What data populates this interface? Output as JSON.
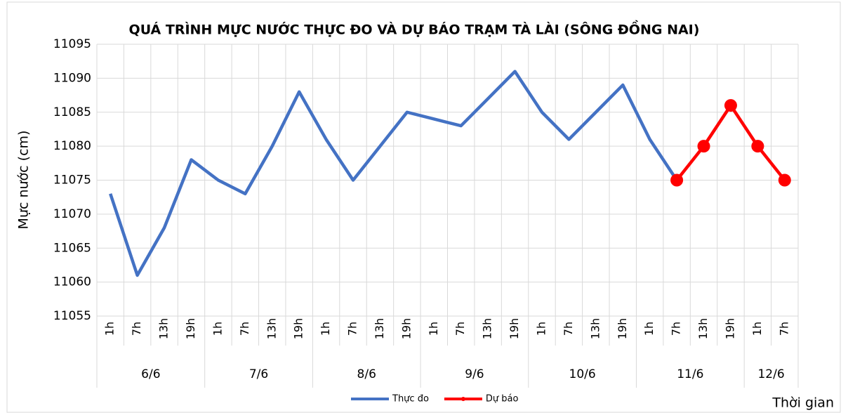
{
  "chart_data": {
    "type": "line",
    "title": "QUÁ TRÌNH MỰC NƯỚC THỰC ĐO VÀ DỰ BÁO TRẠM TÀ LÀI (SÔNG ĐỒNG NAI)",
    "y_label": "Mực nước (cm)",
    "x_label": "Thời gian",
    "categories": [
      "1h",
      "7h",
      "13h",
      "19h",
      "1h",
      "7h",
      "13h",
      "19h",
      "1h",
      "7h",
      "13h",
      "19h",
      "1h",
      "7h",
      "13h",
      "19h",
      "1h",
      "7h",
      "13h",
      "19h",
      "1h",
      "7h",
      "13h",
      "19h",
      "1h",
      "7h"
    ],
    "category_groups": [
      {
        "label": "6/6",
        "size": 4
      },
      {
        "label": "7/6",
        "size": 4
      },
      {
        "label": "8/6",
        "size": 4
      },
      {
        "label": "9/6",
        "size": 4
      },
      {
        "label": "10/6",
        "size": 4
      },
      {
        "label": "11/6",
        "size": 4
      },
      {
        "label": "12/6",
        "size": 2
      }
    ],
    "series": [
      {
        "name": "Thực đo",
        "color": "#4472c4",
        "marker": false,
        "values": [
          11073,
          11061,
          11068,
          11078,
          11075,
          11073,
          11080,
          11088,
          11081,
          11075,
          11080,
          11085,
          11084,
          11083,
          11087,
          11091,
          11085,
          11081,
          11085,
          11089,
          11081,
          11075,
          null,
          null,
          null,
          null
        ]
      },
      {
        "name": "Dự báo",
        "color": "#ff0000",
        "marker": true,
        "values": [
          null,
          null,
          null,
          null,
          null,
          null,
          null,
          null,
          null,
          null,
          null,
          null,
          null,
          null,
          null,
          null,
          null,
          null,
          null,
          null,
          null,
          11075,
          11080,
          11086,
          11080,
          11075
        ]
      }
    ],
    "ylim": [
      11055,
      11095
    ],
    "yticks": [
      11055,
      11060,
      11065,
      11070,
      11075,
      11080,
      11085,
      11090,
      11095
    ],
    "grid": true,
    "legend": "bottom"
  }
}
